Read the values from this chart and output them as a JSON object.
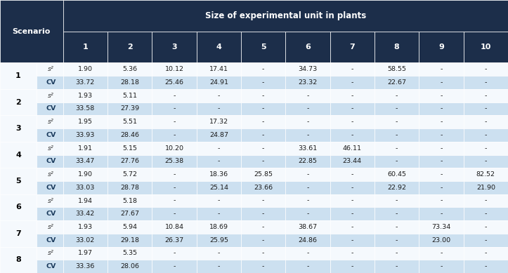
{
  "title": "Size of experimental unit in plants",
  "col_header": [
    "1",
    "2",
    "3",
    "4",
    "5",
    "6",
    "7",
    "8",
    "9",
    "10"
  ],
  "scenarios": [
    1,
    2,
    3,
    4,
    5,
    6,
    7,
    8
  ],
  "data": {
    "1": {
      "s2": [
        "1.90",
        "5.36",
        "10.12",
        "17.41",
        "-",
        "34.73",
        "-",
        "58.55",
        "-",
        "-"
      ],
      "CV": [
        "33.72",
        "28.18",
        "25.46",
        "24.91",
        "-",
        "23.32",
        "-",
        "22.67",
        "-",
        "-"
      ]
    },
    "2": {
      "s2": [
        "1.93",
        "5.11",
        "-",
        "-",
        "-",
        "-",
        "-",
        "-",
        "-",
        "-"
      ],
      "CV": [
        "33.58",
        "27.39",
        "-",
        "-",
        "-",
        "-",
        "-",
        "-",
        "-",
        "-"
      ]
    },
    "3": {
      "s2": [
        "1.95",
        "5.51",
        "-",
        "17.32",
        "-",
        "-",
        "-",
        "-",
        "-",
        "-"
      ],
      "CV": [
        "33.93",
        "28.46",
        "-",
        "24.87",
        "-",
        "-",
        "-",
        "-",
        "-",
        "-"
      ]
    },
    "4": {
      "s2": [
        "1.91",
        "5.15",
        "10.20",
        "-",
        "-",
        "33.61",
        "46.11",
        "-",
        "-",
        "-"
      ],
      "CV": [
        "33.47",
        "27.76",
        "25.38",
        "-",
        "-",
        "22.85",
        "23.44",
        "-",
        "-",
        "-"
      ]
    },
    "5": {
      "s2": [
        "1.90",
        "5.72",
        "-",
        "18.36",
        "25.85",
        "-",
        "-",
        "60.45",
        "-",
        "82.52"
      ],
      "CV": [
        "33.03",
        "28.78",
        "-",
        "25.14",
        "23.66",
        "-",
        "-",
        "22.92",
        "-",
        "21.90"
      ]
    },
    "6": {
      "s2": [
        "1.94",
        "5.18",
        "-",
        "-",
        "-",
        "-",
        "-",
        "-",
        "-",
        "-"
      ],
      "CV": [
        "33.42",
        "27.67",
        "-",
        "-",
        "-",
        "-",
        "-",
        "-",
        "-",
        "-"
      ]
    },
    "7": {
      "s2": [
        "1.93",
        "5.94",
        "10.84",
        "18.69",
        "-",
        "38.67",
        "-",
        "-",
        "73.34",
        "-"
      ],
      "CV": [
        "33.02",
        "29.18",
        "26.37",
        "25.95",
        "-",
        "24.86",
        "-",
        "-",
        "23.00",
        "-"
      ]
    },
    "8": {
      "s2": [
        "1.97",
        "5.35",
        "-",
        "-",
        "-",
        "-",
        "-",
        "-",
        "-",
        "-"
      ],
      "CV": [
        "33.36",
        "28.06",
        "-",
        "-",
        "-",
        "-",
        "-",
        "-",
        "-",
        "-"
      ]
    }
  },
  "header_dark_bg": "#1c2e4a",
  "header_text": "#ffffff",
  "row_bg_white": "#f5f9fd",
  "row_bg_blue": "#cce0f0",
  "scenario_num_color": "#000000",
  "data_text_color": "#1a1a1a",
  "label_s2_color": "#333333",
  "label_cv_color": "#1a3a5c",
  "border_color": "#ffffff",
  "fig_bg": "#f0f4f8"
}
